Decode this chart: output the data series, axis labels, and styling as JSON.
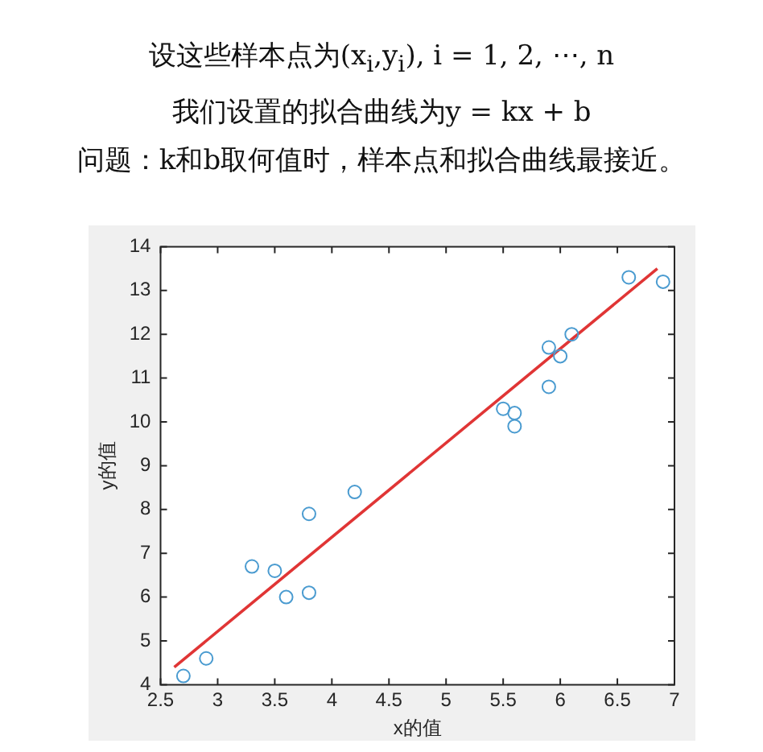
{
  "chart_data": {
    "type": "scatter",
    "title": "设这些样本点为(x$_{i}$,y$_{i}$), i = 1, 2, ⋯, n",
    "subtitle": "我们设置的拟合曲线为y = kx + b",
    "annotations": [
      "问题：k和b取何值时，样本点和拟合曲线最接近。"
    ],
    "xlabel": "x的值",
    "ylabel": "y的值",
    "xlim": [
      2.5,
      7
    ],
    "xticks": [
      2.5,
      3,
      3.5,
      4,
      4.5,
      5,
      5.5,
      6,
      6.5,
      7
    ],
    "ylim": [
      4,
      14
    ],
    "yticks": [
      4,
      5,
      6,
      7,
      8,
      9,
      10,
      11,
      12,
      13,
      14
    ],
    "series": [
      {
        "marker": "circle",
        "color": "#4a9bd0",
        "x": [
          2.7,
          2.9,
          3.3,
          3.5,
          3.6,
          3.8,
          3.8,
          4.2,
          5.5,
          5.6,
          5.6,
          5.9,
          5.9,
          6.0,
          6.1,
          6.6,
          6.9
        ],
        "values": [
          4.2,
          4.6,
          6.7,
          6.6,
          6.0,
          7.9,
          6.1,
          8.4,
          10.3,
          10.2,
          9.9,
          11.7,
          10.8,
          11.5,
          12.0,
          13.3,
          13.2
        ]
      },
      {
        "type": "line",
        "marker": "none",
        "color": "#e03535",
        "x": [
          2.62,
          6.85
        ],
        "values": [
          4.4,
          13.5
        ]
      }
    ]
  }
}
